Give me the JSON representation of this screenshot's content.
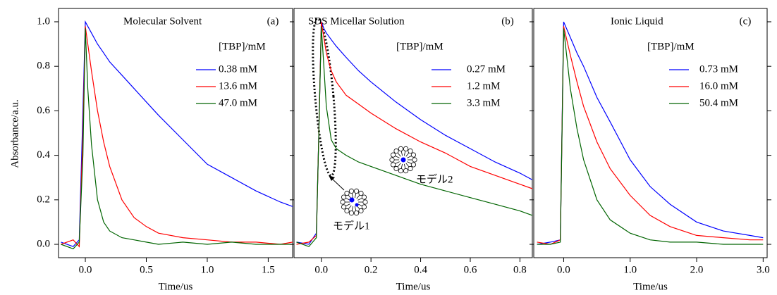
{
  "chart_data": [
    {
      "type": "line",
      "title": "Molecular Solvent",
      "panel_label": "(a)",
      "legend_title": "[TBP]/mM",
      "x_label": "Time/us",
      "y_label": "Absorbance/a.u.",
      "x": [
        -0.2,
        -0.1,
        -0.05,
        -0.02,
        0,
        0.02,
        0.05,
        0.1,
        0.15,
        0.2,
        0.3,
        0.4,
        0.5,
        0.6,
        0.8,
        1.0,
        1.2,
        1.4,
        1.6,
        1.7
      ],
      "series": [
        {
          "name": "0.38 mM",
          "color": "#0000ff",
          "values": [
            0.01,
            -0.01,
            0.02,
            0.6,
            1.0,
            0.98,
            0.95,
            0.9,
            0.86,
            0.82,
            0.76,
            0.7,
            0.64,
            0.58,
            0.47,
            0.36,
            0.3,
            0.24,
            0.19,
            0.17
          ]
        },
        {
          "name": "13.6 mM",
          "color": "#ff0000",
          "values": [
            0.0,
            0.02,
            -0.01,
            0.5,
            0.98,
            0.9,
            0.78,
            0.6,
            0.46,
            0.35,
            0.2,
            0.12,
            0.08,
            0.05,
            0.03,
            0.02,
            0.01,
            0.01,
            0.0,
            0.01
          ]
        },
        {
          "name": "47.0 mM",
          "color": "#006400",
          "values": [
            0.0,
            -0.02,
            0.01,
            0.4,
            0.97,
            0.7,
            0.45,
            0.2,
            0.1,
            0.06,
            0.03,
            0.02,
            0.01,
            0.0,
            0.01,
            0.0,
            0.01,
            0.0,
            0.0,
            0.0
          ]
        }
      ],
      "xlim": [
        -0.22,
        1.7
      ],
      "ylim": [
        -0.06,
        1.06
      ],
      "xticks": [
        {
          "value": 0,
          "label": "0.0"
        },
        {
          "value": 0.5,
          "label": "0.5"
        },
        {
          "value": 1,
          "label": "1.0"
        },
        {
          "value": 1.5,
          "label": "1.5"
        }
      ],
      "yticks": [
        {
          "value": 0,
          "label": "0.0"
        },
        {
          "value": 0.2,
          "label": "0.2"
        },
        {
          "value": 0.4,
          "label": "0.4"
        },
        {
          "value": 0.6,
          "label": "0.6"
        },
        {
          "value": 0.8,
          "label": "0.8"
        },
        {
          "value": 1,
          "label": "1.0"
        }
      ]
    },
    {
      "type": "line",
      "title": "SDS Micellar Solution",
      "panel_label": "(b)",
      "legend_title": "[TBP]/mM",
      "x_label": "Time/us",
      "annotations": [
        "モデル1",
        "モデル2"
      ],
      "x": [
        -0.1,
        -0.05,
        -0.02,
        -0.01,
        0,
        0.01,
        0.02,
        0.04,
        0.06,
        0.1,
        0.15,
        0.2,
        0.3,
        0.4,
        0.5,
        0.6,
        0.7,
        0.8,
        0.85
      ],
      "series": [
        {
          "name": "0.27 mM",
          "color": "#0000ff",
          "values": [
            0.01,
            0.0,
            0.05,
            0.5,
            1.0,
            0.97,
            0.95,
            0.92,
            0.89,
            0.84,
            0.78,
            0.73,
            0.64,
            0.56,
            0.49,
            0.43,
            0.37,
            0.32,
            0.29
          ]
        },
        {
          "name": "1.2 mM",
          "color": "#ff0000",
          "values": [
            0.0,
            0.01,
            0.04,
            0.5,
            1.0,
            0.93,
            0.86,
            0.78,
            0.73,
            0.67,
            0.63,
            0.59,
            0.52,
            0.46,
            0.41,
            0.35,
            0.31,
            0.27,
            0.25
          ]
        },
        {
          "name": "3.3 mM",
          "color": "#006400",
          "values": [
            0.01,
            -0.01,
            0.03,
            0.5,
            0.98,
            0.8,
            0.62,
            0.47,
            0.43,
            0.4,
            0.37,
            0.35,
            0.31,
            0.27,
            0.24,
            0.21,
            0.18,
            0.15,
            0.13
          ]
        }
      ],
      "xlim": [
        -0.11,
        0.85
      ],
      "ylim": [
        -0.06,
        1.06
      ],
      "xticks": [
        {
          "value": 0,
          "label": "0.0"
        },
        {
          "value": 0.2,
          "label": "0.2"
        },
        {
          "value": 0.4,
          "label": "0.4"
        },
        {
          "value": 0.6,
          "label": "0.6"
        },
        {
          "value": 0.8,
          "label": "0.8"
        }
      ],
      "yticks": [
        0,
        0.2,
        0.4,
        0.6,
        0.8,
        1
      ]
    },
    {
      "type": "line",
      "title": "Ionic Liquid",
      "panel_label": "(c)",
      "legend_title": "[TBP]/mM",
      "x_label": "Time/us",
      "x": [
        -0.4,
        -0.2,
        -0.05,
        0,
        0.1,
        0.2,
        0.3,
        0.5,
        0.7,
        1.0,
        1.3,
        1.6,
        2.0,
        2.4,
        2.8,
        3.0
      ],
      "series": [
        {
          "name": "0.73 mM",
          "color": "#0000ff",
          "values": [
            0.0,
            0.01,
            0.02,
            1.0,
            0.93,
            0.86,
            0.8,
            0.66,
            0.55,
            0.38,
            0.26,
            0.18,
            0.1,
            0.06,
            0.04,
            0.03
          ]
        },
        {
          "name": "16.0 mM",
          "color": "#ff0000",
          "values": [
            0.01,
            0.0,
            0.02,
            0.98,
            0.85,
            0.73,
            0.62,
            0.46,
            0.34,
            0.22,
            0.13,
            0.08,
            0.04,
            0.03,
            0.02,
            0.02
          ]
        },
        {
          "name": "50.4 mM",
          "color": "#006400",
          "values": [
            0.0,
            0.0,
            0.01,
            0.97,
            0.7,
            0.52,
            0.38,
            0.2,
            0.11,
            0.05,
            0.02,
            0.01,
            0.01,
            0.0,
            0.0,
            0.0
          ]
        }
      ],
      "xlim": [
        -0.45,
        3.06
      ],
      "ylim": [
        -0.06,
        1.06
      ],
      "xticks": [
        {
          "value": 0,
          "label": "0.0"
        },
        {
          "value": 1,
          "label": "1.0"
        },
        {
          "value": 2,
          "label": "2.0"
        },
        {
          "value": 3,
          "label": "3.0"
        }
      ],
      "yticks": [
        0,
        0.2,
        0.4,
        0.6,
        0.8,
        1
      ]
    }
  ]
}
